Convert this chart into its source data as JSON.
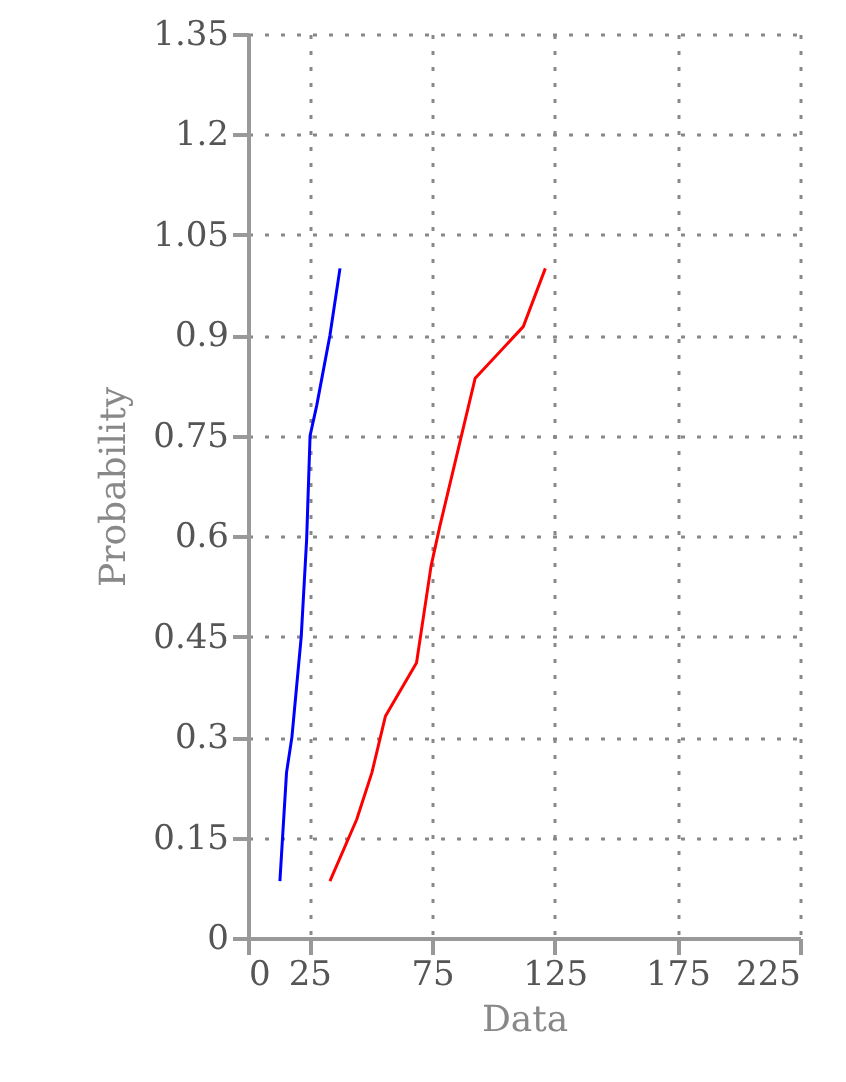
{
  "chart_data": {
    "type": "line",
    "xlabel": "Data",
    "ylabel": "Probability",
    "xlim": [
      0,
      225
    ],
    "xticks": [
      0,
      25,
      75,
      125,
      175,
      225
    ],
    "ylim": [
      0,
      1.35
    ],
    "yticks": [
      0,
      0.15,
      0.3,
      0.45,
      0.6,
      0.75,
      0.9,
      1.05,
      1.2,
      1.35
    ],
    "grid": true,
    "line_style": "solid",
    "series": [
      {
        "color": "#0000ff",
        "x": [
          13,
          15.7,
          17.9,
          21.7,
          23.9,
          25.3,
          28,
          33.4,
          37.5
        ],
        "values": [
          0.085,
          0.247,
          0.3,
          0.45,
          0.595,
          0.75,
          0.795,
          0.9,
          1.0
        ]
      },
      {
        "color": "#ff0000",
        "x": [
          33.4,
          44.3,
          50.5,
          56,
          68.7,
          74.6,
          78.2,
          92.6,
          112.2,
          121.2
        ],
        "values": [
          0.085,
          0.177,
          0.247,
          0.331,
          0.411,
          0.555,
          0.615,
          0.836,
          0.913,
          1.0
        ]
      }
    ]
  }
}
